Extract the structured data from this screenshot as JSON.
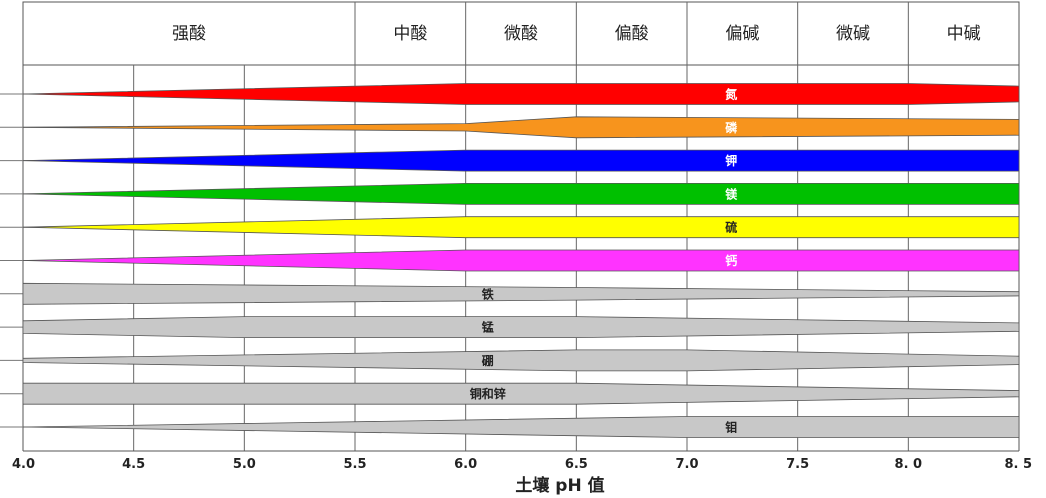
{
  "chart_data": {
    "type": "area",
    "xlabel": "土壤 pH 值",
    "x_ticks": [
      "4.0",
      "4.5",
      "5.0",
      "5.5",
      "6.0",
      "6.5",
      "7.0",
      "7.5",
      "8. 0",
      "8. 5"
    ],
    "xlim": [
      4.0,
      8.5
    ],
    "grid": true,
    "zones": [
      {
        "label": "强酸",
        "from": 4.0,
        "to": 5.5
      },
      {
        "label": "中酸",
        "from": 5.5,
        "to": 6.0
      },
      {
        "label": "微酸",
        "from": 6.0,
        "to": 6.5
      },
      {
        "label": "偏酸",
        "from": 6.5,
        "to": 7.0
      },
      {
        "label": "偏碱",
        "from": 7.0,
        "to": 7.5
      },
      {
        "label": "微碱",
        "from": 7.5,
        "to": 8.0
      },
      {
        "label": "中碱",
        "from": 8.0,
        "to": 8.5
      }
    ],
    "series": [
      {
        "name": "氮",
        "color": "#ff0000",
        "label_ph": 7.2,
        "availability": [
          [
            4.0,
            0.0
          ],
          [
            6.0,
            1.0
          ],
          [
            8.0,
            1.0
          ],
          [
            8.5,
            0.75
          ]
        ]
      },
      {
        "name": "磷",
        "color": "#f7941d",
        "label_ph": 7.2,
        "availability": [
          [
            4.0,
            0.0
          ],
          [
            6.0,
            0.35
          ],
          [
            6.5,
            1.0
          ],
          [
            8.5,
            0.75
          ]
        ]
      },
      {
        "name": "钾",
        "color": "#0000ff",
        "label_ph": 7.2,
        "availability": [
          [
            4.0,
            0.0
          ],
          [
            6.0,
            1.0
          ],
          [
            8.5,
            1.0
          ]
        ]
      },
      {
        "name": "镁",
        "color": "#00c000",
        "label_ph": 7.2,
        "availability": [
          [
            4.0,
            0.0
          ],
          [
            6.0,
            1.0
          ],
          [
            8.5,
            1.0
          ]
        ]
      },
      {
        "name": "硫",
        "color": "#ffff00",
        "label_ph": 7.2,
        "availability": [
          [
            4.0,
            0.0
          ],
          [
            6.0,
            1.0
          ],
          [
            8.5,
            1.0
          ]
        ]
      },
      {
        "name": "钙",
        "color": "#ff33ff",
        "label_ph": 7.2,
        "availability": [
          [
            4.0,
            0.0
          ],
          [
            6.0,
            1.0
          ],
          [
            8.5,
            1.0
          ]
        ]
      },
      {
        "name": "铁",
        "color": "#c8c8c8",
        "label_ph": 6.1,
        "availability": [
          [
            4.0,
            1.0
          ],
          [
            6.5,
            0.6
          ],
          [
            8.5,
            0.2
          ]
        ]
      },
      {
        "name": "锰",
        "color": "#c8c8c8",
        "label_ph": 6.1,
        "availability": [
          [
            4.0,
            0.6
          ],
          [
            5.0,
            1.0
          ],
          [
            6.5,
            1.0
          ],
          [
            8.5,
            0.4
          ]
        ]
      },
      {
        "name": "硼",
        "color": "#c8c8c8",
        "label_ph": 6.1,
        "availability": [
          [
            4.0,
            0.2
          ],
          [
            6.5,
            1.0
          ],
          [
            7.0,
            1.0
          ],
          [
            8.5,
            0.4
          ]
        ]
      },
      {
        "name": "铜和锌",
        "color": "#c8c8c8",
        "label_ph": 6.1,
        "availability": [
          [
            4.0,
            1.0
          ],
          [
            6.5,
            1.0
          ],
          [
            8.5,
            0.3
          ]
        ]
      },
      {
        "name": "钼",
        "color": "#c8c8c8",
        "label_ph": 7.2,
        "availability": [
          [
            4.0,
            0.0
          ],
          [
            7.0,
            1.0
          ],
          [
            8.5,
            1.0
          ]
        ]
      }
    ]
  }
}
